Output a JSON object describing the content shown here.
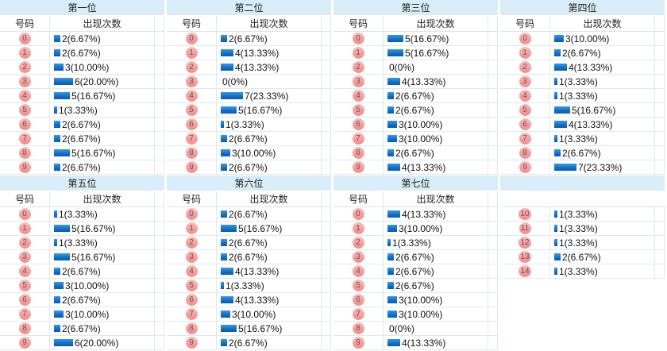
{
  "header_labels": {
    "number": "号码",
    "count": "出现次数"
  },
  "colors": {
    "title_bg": "#d9edf8",
    "grid_border": "#dde9f2",
    "badge_pink": "#ee8e8c",
    "badge_text": "#7d4a4a",
    "bar_blue": "#0e6fc5",
    "text": "#111111"
  },
  "sections": [
    {
      "title": "第一位",
      "rows": [
        {
          "num": "0",
          "count": 2,
          "label": "2(6.67%)"
        },
        {
          "num": "1",
          "count": 2,
          "label": "2(6.67%)"
        },
        {
          "num": "2",
          "count": 3,
          "label": "3(10.00%)"
        },
        {
          "num": "3",
          "count": 6,
          "label": "6(20.00%)"
        },
        {
          "num": "4",
          "count": 5,
          "label": "5(16.67%)"
        },
        {
          "num": "5",
          "count": 1,
          "label": "1(3.33%)"
        },
        {
          "num": "6",
          "count": 2,
          "label": "2(6.67%)"
        },
        {
          "num": "7",
          "count": 2,
          "label": "2(6.67%)"
        },
        {
          "num": "8",
          "count": 5,
          "label": "5(16.67%)"
        },
        {
          "num": "9",
          "count": 2,
          "label": "2(6.67%)"
        }
      ]
    },
    {
      "title": "第二位",
      "rows": [
        {
          "num": "0",
          "count": 2,
          "label": "2(6.67%)"
        },
        {
          "num": "1",
          "count": 4,
          "label": "4(13.33%)"
        },
        {
          "num": "2",
          "count": 4,
          "label": "4(13.33%)"
        },
        {
          "num": "3",
          "count": 0,
          "label": "0(0%)"
        },
        {
          "num": "4",
          "count": 7,
          "label": "7(23.33%)"
        },
        {
          "num": "5",
          "count": 5,
          "label": "5(16.67%)"
        },
        {
          "num": "6",
          "count": 1,
          "label": "1(3.33%)"
        },
        {
          "num": "7",
          "count": 2,
          "label": "2(6.67%)"
        },
        {
          "num": "8",
          "count": 3,
          "label": "3(10.00%)"
        },
        {
          "num": "9",
          "count": 2,
          "label": "2(6.67%)"
        }
      ]
    },
    {
      "title": "第三位",
      "rows": [
        {
          "num": "0",
          "count": 5,
          "label": "5(16.67%)"
        },
        {
          "num": "1",
          "count": 5,
          "label": "5(16.67%)"
        },
        {
          "num": "2",
          "count": 0,
          "label": "0(0%)"
        },
        {
          "num": "3",
          "count": 4,
          "label": "4(13.33%)"
        },
        {
          "num": "4",
          "count": 2,
          "label": "2(6.67%)"
        },
        {
          "num": "5",
          "count": 2,
          "label": "2(6.67%)"
        },
        {
          "num": "6",
          "count": 3,
          "label": "3(10.00%)"
        },
        {
          "num": "7",
          "count": 3,
          "label": "3(10.00%)"
        },
        {
          "num": "8",
          "count": 2,
          "label": "2(6.67%)"
        },
        {
          "num": "9",
          "count": 4,
          "label": "4(13.33%)"
        }
      ]
    },
    {
      "title": "第四位",
      "rows": [
        {
          "num": "0",
          "count": 3,
          "label": "3(10.00%)"
        },
        {
          "num": "1",
          "count": 2,
          "label": "2(6.67%)"
        },
        {
          "num": "2",
          "count": 4,
          "label": "4(13.33%)"
        },
        {
          "num": "3",
          "count": 1,
          "label": "1(3.33%)"
        },
        {
          "num": "4",
          "count": 1,
          "label": "1(3.33%)"
        },
        {
          "num": "5",
          "count": 5,
          "label": "5(16.67%)"
        },
        {
          "num": "6",
          "count": 4,
          "label": "4(13.33%)"
        },
        {
          "num": "7",
          "count": 1,
          "label": "1(3.33%)"
        },
        {
          "num": "8",
          "count": 2,
          "label": "2(6.67%)"
        },
        {
          "num": "9",
          "count": 7,
          "label": "7(23.33%)"
        }
      ]
    },
    {
      "title": "第五位",
      "rows": [
        {
          "num": "0",
          "count": 1,
          "label": "1(3.33%)"
        },
        {
          "num": "1",
          "count": 5,
          "label": "5(16.67%)"
        },
        {
          "num": "2",
          "count": 1,
          "label": "1(3.33%)"
        },
        {
          "num": "3",
          "count": 5,
          "label": "5(16.67%)"
        },
        {
          "num": "4",
          "count": 2,
          "label": "2(6.67%)"
        },
        {
          "num": "5",
          "count": 3,
          "label": "3(10.00%)"
        },
        {
          "num": "6",
          "count": 2,
          "label": "2(6.67%)"
        },
        {
          "num": "7",
          "count": 3,
          "label": "3(10.00%)"
        },
        {
          "num": "8",
          "count": 2,
          "label": "2(6.67%)"
        },
        {
          "num": "9",
          "count": 6,
          "label": "6(20.00%)"
        }
      ]
    },
    {
      "title": "第六位",
      "rows": [
        {
          "num": "0",
          "count": 2,
          "label": "2(6.67%)"
        },
        {
          "num": "1",
          "count": 5,
          "label": "5(16.67%)"
        },
        {
          "num": "2",
          "count": 2,
          "label": "2(6.67%)"
        },
        {
          "num": "3",
          "count": 2,
          "label": "2(6.67%)"
        },
        {
          "num": "4",
          "count": 4,
          "label": "4(13.33%)"
        },
        {
          "num": "5",
          "count": 1,
          "label": "1(3.33%)"
        },
        {
          "num": "6",
          "count": 4,
          "label": "4(13.33%)"
        },
        {
          "num": "7",
          "count": 3,
          "label": "3(10.00%)"
        },
        {
          "num": "8",
          "count": 5,
          "label": "5(16.67%)"
        },
        {
          "num": "9",
          "count": 2,
          "label": "2(6.67%)"
        }
      ]
    },
    {
      "title": "第七位",
      "rows": [
        {
          "num": "0",
          "count": 4,
          "label": "4(13.33%)"
        },
        {
          "num": "1",
          "count": 3,
          "label": "3(10.00%)"
        },
        {
          "num": "2",
          "count": 1,
          "label": "1(3.33%)"
        },
        {
          "num": "3",
          "count": 2,
          "label": "2(6.67%)"
        },
        {
          "num": "4",
          "count": 2,
          "label": "2(6.67%)"
        },
        {
          "num": "5",
          "count": 2,
          "label": "2(6.67%)"
        },
        {
          "num": "6",
          "count": 3,
          "label": "3(10.00%)"
        },
        {
          "num": "7",
          "count": 3,
          "label": "3(10.00%)"
        },
        {
          "num": "8",
          "count": 0,
          "label": "0(0%)"
        },
        {
          "num": "9",
          "count": 4,
          "label": "4(13.33%)"
        }
      ]
    },
    {
      "title": "",
      "blank_header": true,
      "rows": [
        {
          "num": "10",
          "count": 1,
          "label": "1(3.33%)"
        },
        {
          "num": "11",
          "count": 1,
          "label": "1(3.33%)"
        },
        {
          "num": "12",
          "count": 1,
          "label": "1(3.33%)"
        },
        {
          "num": "13",
          "count": 2,
          "label": "2(6.67%)"
        },
        {
          "num": "14",
          "count": 1,
          "label": "1(3.33%)"
        }
      ]
    }
  ],
  "chart_data": [
    {
      "type": "bar",
      "title": "第一位",
      "xlabel": "号码",
      "ylabel": "出现次数",
      "categories": [
        "0",
        "1",
        "2",
        "3",
        "4",
        "5",
        "6",
        "7",
        "8",
        "9"
      ],
      "values": [
        2,
        2,
        3,
        6,
        5,
        1,
        2,
        2,
        5,
        2
      ],
      "value_labels": [
        "2(6.67%)",
        "2(6.67%)",
        "3(10.00%)",
        "6(20.00%)",
        "5(16.67%)",
        "1(3.33%)",
        "2(6.67%)",
        "2(6.67%)",
        "5(16.67%)",
        "2(6.67%)"
      ]
    },
    {
      "type": "bar",
      "title": "第二位",
      "xlabel": "号码",
      "ylabel": "出现次数",
      "categories": [
        "0",
        "1",
        "2",
        "3",
        "4",
        "5",
        "6",
        "7",
        "8",
        "9"
      ],
      "values": [
        2,
        4,
        4,
        0,
        7,
        5,
        1,
        2,
        3,
        2
      ],
      "value_labels": [
        "2(6.67%)",
        "4(13.33%)",
        "4(13.33%)",
        "0(0%)",
        "7(23.33%)",
        "5(16.67%)",
        "1(3.33%)",
        "2(6.67%)",
        "3(10.00%)",
        "2(6.67%)"
      ]
    },
    {
      "type": "bar",
      "title": "第三位",
      "xlabel": "号码",
      "ylabel": "出现次数",
      "categories": [
        "0",
        "1",
        "2",
        "3",
        "4",
        "5",
        "6",
        "7",
        "8",
        "9"
      ],
      "values": [
        5,
        5,
        0,
        4,
        2,
        2,
        3,
        3,
        2,
        4
      ],
      "value_labels": [
        "5(16.67%)",
        "5(16.67%)",
        "0(0%)",
        "4(13.33%)",
        "2(6.67%)",
        "2(6.67%)",
        "3(10.00%)",
        "3(10.00%)",
        "2(6.67%)",
        "4(13.33%)"
      ]
    },
    {
      "type": "bar",
      "title": "第四位",
      "xlabel": "号码",
      "ylabel": "出现次数",
      "categories": [
        "0",
        "1",
        "2",
        "3",
        "4",
        "5",
        "6",
        "7",
        "8",
        "9"
      ],
      "values": [
        3,
        2,
        4,
        1,
        1,
        5,
        4,
        1,
        2,
        7
      ],
      "value_labels": [
        "3(10.00%)",
        "2(6.67%)",
        "4(13.33%)",
        "1(3.33%)",
        "1(3.33%)",
        "5(16.67%)",
        "4(13.33%)",
        "1(3.33%)",
        "2(6.67%)",
        "7(23.33%)"
      ]
    },
    {
      "type": "bar",
      "title": "第五位",
      "xlabel": "号码",
      "ylabel": "出现次数",
      "categories": [
        "0",
        "1",
        "2",
        "3",
        "4",
        "5",
        "6",
        "7",
        "8",
        "9"
      ],
      "values": [
        1,
        5,
        1,
        5,
        2,
        3,
        2,
        3,
        2,
        6
      ],
      "value_labels": [
        "1(3.33%)",
        "5(16.67%)",
        "1(3.33%)",
        "5(16.67%)",
        "2(6.67%)",
        "3(10.00%)",
        "2(6.67%)",
        "3(10.00%)",
        "2(6.67%)",
        "6(20.00%)"
      ]
    },
    {
      "type": "bar",
      "title": "第六位",
      "xlabel": "号码",
      "ylabel": "出现次数",
      "categories": [
        "0",
        "1",
        "2",
        "3",
        "4",
        "5",
        "6",
        "7",
        "8",
        "9"
      ],
      "values": [
        2,
        5,
        2,
        2,
        4,
        1,
        4,
        3,
        5,
        2
      ],
      "value_labels": [
        "2(6.67%)",
        "5(16.67%)",
        "2(6.67%)",
        "2(6.67%)",
        "4(13.33%)",
        "1(3.33%)",
        "4(13.33%)",
        "3(10.00%)",
        "5(16.67%)",
        "2(6.67%)"
      ]
    },
    {
      "type": "bar",
      "title": "第七位",
      "xlabel": "号码",
      "ylabel": "出现次数",
      "categories": [
        "0",
        "1",
        "2",
        "3",
        "4",
        "5",
        "6",
        "7",
        "8",
        "9",
        "10",
        "11",
        "12",
        "13",
        "14"
      ],
      "values": [
        4,
        3,
        1,
        2,
        2,
        2,
        3,
        3,
        0,
        4,
        1,
        1,
        1,
        2,
        1
      ],
      "value_labels": [
        "4(13.33%)",
        "3(10.00%)",
        "1(3.33%)",
        "2(6.67%)",
        "2(6.67%)",
        "2(6.67%)",
        "3(10.00%)",
        "3(10.00%)",
        "0(0%)",
        "4(13.33%)",
        "1(3.33%)",
        "1(3.33%)",
        "1(3.33%)",
        "2(6.67%)",
        "1(3.33%)"
      ]
    }
  ]
}
